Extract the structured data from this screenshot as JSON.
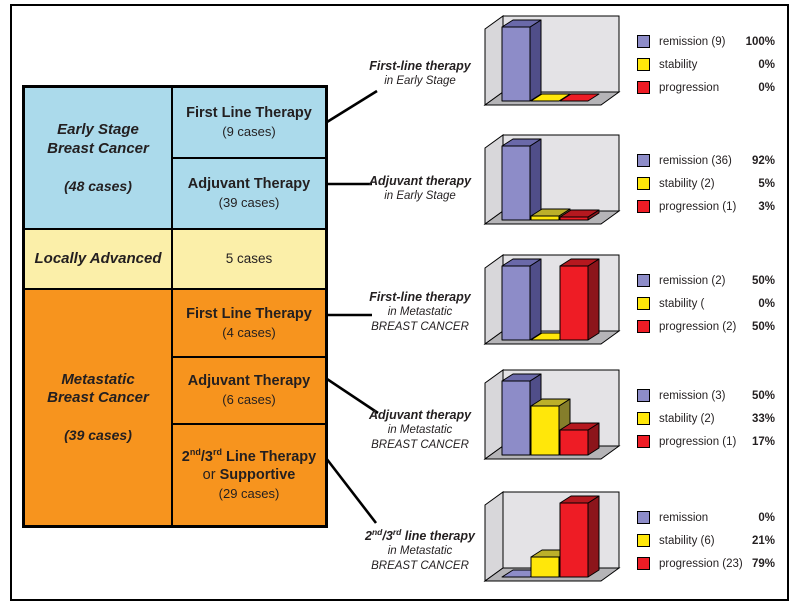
{
  "table": {
    "colors": {
      "early": "#ABDAEB",
      "locally": "#FBEFA9",
      "metastatic": "#F7941E"
    },
    "early": {
      "name_l1": "Early Stage",
      "name_l2": "Breast Cancer",
      "cases": "(48 cases)"
    },
    "locally": {
      "name": "Locally Advanced",
      "cases": "5 cases"
    },
    "metastatic": {
      "name_l1": "Metastatic",
      "name_l2": "Breast Cancer",
      "cases": "(39 cases)"
    },
    "rows": {
      "early_first": {
        "name": "First Line Therapy",
        "cases": "(9 cases)"
      },
      "early_adj": {
        "name": "Adjuvant Therapy",
        "cases": "(39 cases)"
      },
      "met_first": {
        "name": "First Line Therapy",
        "cases": "(4 cases)"
      },
      "met_adj": {
        "name": "Adjuvant Therapy",
        "cases": "(6 cases)"
      },
      "met_23": {
        "p1": "2",
        "sup1": "nd",
        "p2": "/3",
        "sup2": "rd",
        "p3": " Line Therapy",
        "or": "or ",
        "supportive": "Supportive",
        "cases": "(29 cases)"
      }
    }
  },
  "labels": [
    {
      "line1": "First-line therapy",
      "rest": [
        "in Early Stage"
      ]
    },
    {
      "line1": "Adjuvant therapy",
      "rest": [
        "in Early Stage"
      ]
    },
    {
      "line1": "First-line therapy",
      "rest": [
        "in Metastatic",
        "BREAST CANCER"
      ]
    },
    {
      "line1": "Adjuvant therapy",
      "rest": [
        "in Metastatic",
        "BREAST CANCER"
      ]
    },
    {
      "parts": {
        "p1": "2",
        "sup1": "nd",
        "p2": "/3",
        "sup2": "rd",
        "p3": " line therapy"
      },
      "rest": [
        "in Metastatic",
        "BREAST CANCER"
      ]
    }
  ],
  "colors": {
    "bars": {
      "remission": {
        "front": "#8D8CC8",
        "top": "#6A69A9",
        "side": "#504E89"
      },
      "stability": {
        "front": "#FFE70A",
        "top": "#BCB02A",
        "side": "#857E2B"
      },
      "progression": {
        "front": "#EE1C25",
        "top": "#B5181F",
        "side": "#8C151B"
      }
    },
    "box": {
      "back_wall": "#E4E3E6",
      "left_wall": "#D8D7DA",
      "floor": "#B5B4B7"
    }
  },
  "chart_data": [
    {
      "type": "bar",
      "projection": "3d",
      "title": "First-line therapy in Early Stage",
      "categories": [
        "remission",
        "stability",
        "progression"
      ],
      "values_pct": [
        100,
        0,
        0
      ],
      "counts": [
        9,
        null,
        null
      ],
      "legend_labels": [
        "remission (9)",
        "stability",
        "progression"
      ],
      "pct_labels": [
        "100%",
        "0%",
        "0%"
      ],
      "legend_position": "right"
    },
    {
      "type": "bar",
      "projection": "3d",
      "title": "Adjuvant therapy in Early Stage",
      "categories": [
        "remission",
        "stability",
        "progression"
      ],
      "values_pct": [
        92,
        5,
        3
      ],
      "counts": [
        36,
        2,
        1
      ],
      "legend_labels": [
        "remission (36)",
        "stability (2)",
        "progression (1)"
      ],
      "pct_labels": [
        "92%",
        "5%",
        "3%"
      ],
      "legend_position": "right"
    },
    {
      "type": "bar",
      "projection": "3d",
      "title": "First-line therapy in Metastatic BREAST CANCER",
      "categories": [
        "remission",
        "stability",
        "progression"
      ],
      "values_pct": [
        50,
        0,
        50
      ],
      "counts": [
        2,
        null,
        2
      ],
      "legend_labels": [
        "remission (2)",
        "stability (",
        "progression (2)"
      ],
      "pct_labels": [
        "50%",
        "0%",
        "50%"
      ],
      "legend_position": "right"
    },
    {
      "type": "bar",
      "projection": "3d",
      "title": "Adjuvant therapy in Metastatic BREAST CANCER",
      "categories": [
        "remission",
        "stability",
        "progression"
      ],
      "values_pct": [
        50,
        33,
        17
      ],
      "counts": [
        3,
        2,
        1
      ],
      "legend_labels": [
        "remission (3)",
        "stability (2)",
        "progression (1)"
      ],
      "pct_labels": [
        "50%",
        "33%",
        "17%"
      ],
      "legend_position": "right"
    },
    {
      "type": "bar",
      "projection": "3d",
      "title": "2nd/3rd line therapy in Metastatic BREAST CANCER",
      "categories": [
        "remission",
        "stability",
        "progression"
      ],
      "values_pct": [
        0,
        21,
        79
      ],
      "counts": [
        null,
        6,
        23
      ],
      "legend_labels": [
        "remission",
        "stability (6)",
        "progression (23)"
      ],
      "pct_labels": [
        "0%",
        "21%",
        "79%"
      ],
      "legend_position": "right"
    }
  ]
}
